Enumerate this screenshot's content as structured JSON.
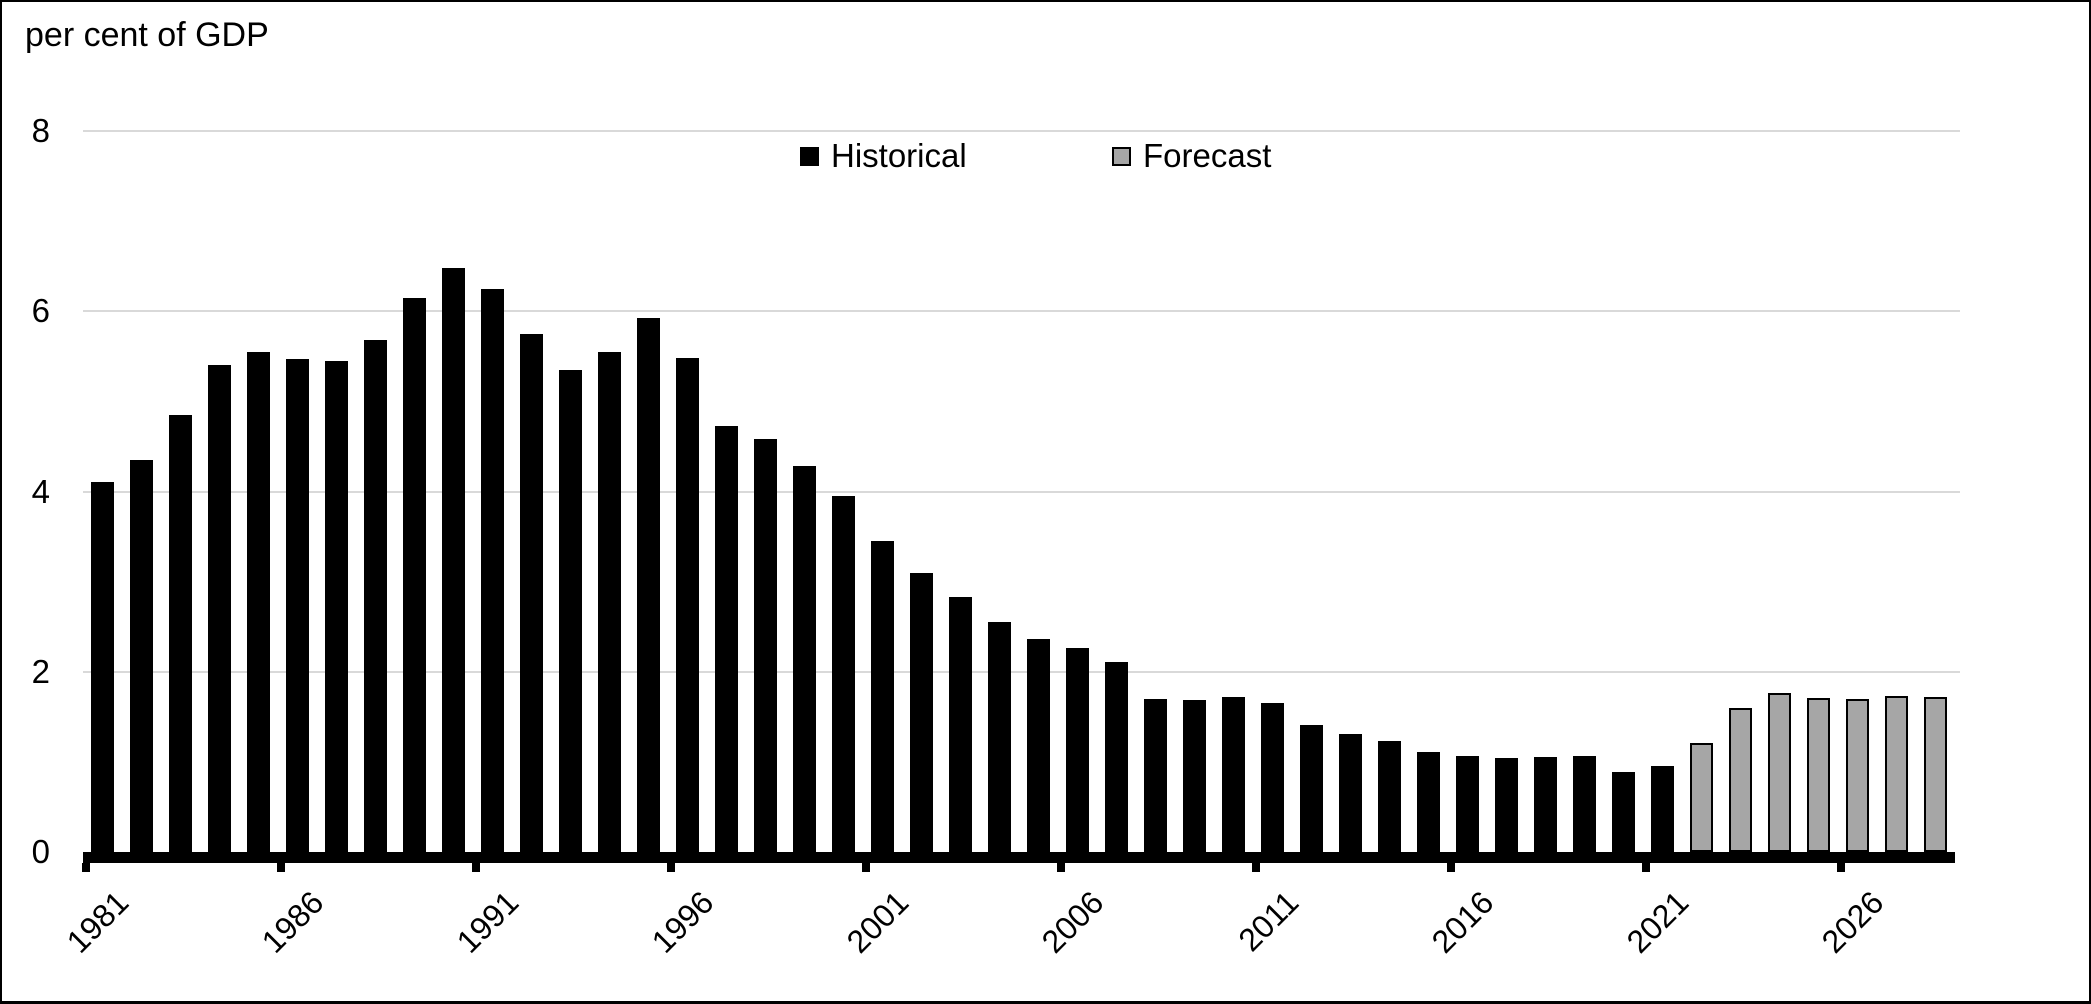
{
  "chart_data": {
    "type": "bar",
    "title": "per cent of GDP",
    "ylim": [
      0,
      8
    ],
    "y_ticks": [
      "0",
      "2",
      "4",
      "6",
      "8"
    ],
    "x_tick_labels": [
      "1981",
      "1986",
      "1991",
      "1996",
      "2001",
      "2006",
      "2011",
      "2016",
      "2021",
      "2026"
    ],
    "x_tick_interval": 5,
    "grid": "horizontal-light-gray",
    "legend_position": "top-center",
    "series": [
      {
        "name": "Historical",
        "fill": "#000000",
        "points": [
          {
            "year": 1981,
            "value": 4.1
          },
          {
            "year": 1982,
            "value": 4.35
          },
          {
            "year": 1983,
            "value": 4.85
          },
          {
            "year": 1984,
            "value": 5.4
          },
          {
            "year": 1985,
            "value": 5.55
          },
          {
            "year": 1986,
            "value": 5.47
          },
          {
            "year": 1987,
            "value": 5.45
          },
          {
            "year": 1988,
            "value": 5.68
          },
          {
            "year": 1989,
            "value": 6.15
          },
          {
            "year": 1990,
            "value": 6.48
          },
          {
            "year": 1991,
            "value": 6.25
          },
          {
            "year": 1992,
            "value": 5.75
          },
          {
            "year": 1993,
            "value": 5.35
          },
          {
            "year": 1994,
            "value": 5.55
          },
          {
            "year": 1995,
            "value": 5.92
          },
          {
            "year": 1996,
            "value": 5.48
          },
          {
            "year": 1997,
            "value": 4.73
          },
          {
            "year": 1998,
            "value": 4.58
          },
          {
            "year": 1999,
            "value": 4.28
          },
          {
            "year": 2000,
            "value": 3.95
          },
          {
            "year": 2001,
            "value": 3.45
          },
          {
            "year": 2002,
            "value": 3.1
          },
          {
            "year": 2003,
            "value": 2.83
          },
          {
            "year": 2004,
            "value": 2.55
          },
          {
            "year": 2005,
            "value": 2.36
          },
          {
            "year": 2006,
            "value": 2.26
          },
          {
            "year": 2007,
            "value": 2.11
          },
          {
            "year": 2008,
            "value": 1.7
          },
          {
            "year": 2009,
            "value": 1.69
          },
          {
            "year": 2010,
            "value": 1.72
          },
          {
            "year": 2011,
            "value": 1.65
          },
          {
            "year": 2012,
            "value": 1.41
          },
          {
            "year": 2013,
            "value": 1.31
          },
          {
            "year": 2014,
            "value": 1.23
          },
          {
            "year": 2015,
            "value": 1.11
          },
          {
            "year": 2016,
            "value": 1.06
          },
          {
            "year": 2017,
            "value": 1.04
          },
          {
            "year": 2018,
            "value": 1.05
          },
          {
            "year": 2019,
            "value": 1.07
          },
          {
            "year": 2020,
            "value": 0.89
          },
          {
            "year": 2021,
            "value": 0.95
          }
        ]
      },
      {
        "name": "Forecast",
        "fill": "#A6A6A6",
        "points": [
          {
            "year": 2022,
            "value": 1.21
          },
          {
            "year": 2023,
            "value": 1.6
          },
          {
            "year": 2024,
            "value": 1.76
          },
          {
            "year": 2025,
            "value": 1.71
          },
          {
            "year": 2026,
            "value": 1.7
          },
          {
            "year": 2027,
            "value": 1.73
          },
          {
            "year": 2028,
            "value": 1.72
          }
        ]
      }
    ]
  },
  "colors": {
    "historical_bar": "#000000",
    "forecast_bar_fill": "#A6A6A6",
    "forecast_bar_border": "#000000",
    "gridline": "#D9D9D9",
    "axis": "#000000",
    "background": "#FFFFFF",
    "text": "#000000"
  }
}
